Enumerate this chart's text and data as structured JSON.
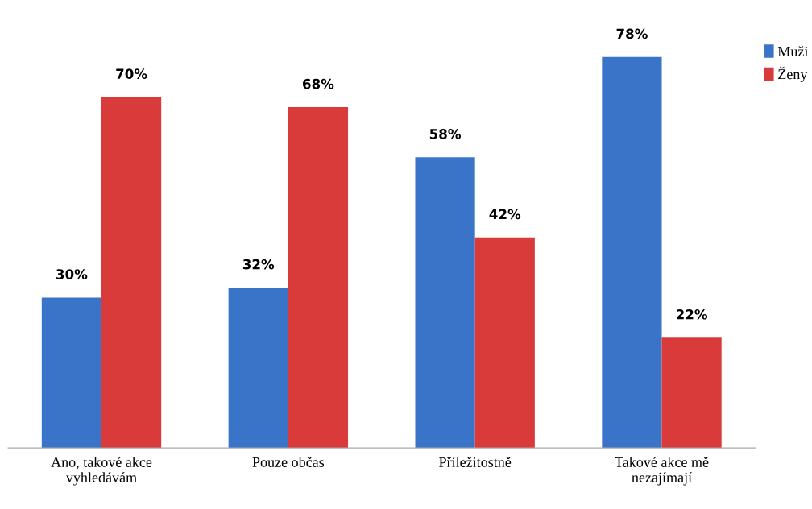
{
  "chart_data": {
    "type": "bar",
    "categories": [
      "Ano, takové akce\nvyhledávám",
      "Pouze občas",
      "Příležitostně",
      "Takové akce mě\nnezajímají"
    ],
    "series": [
      {
        "name": "Muži",
        "color": "#3a74c8",
        "values": [
          30,
          32,
          58,
          78
        ],
        "value_labels": [
          "30%",
          "32%",
          "58%",
          "78%"
        ]
      },
      {
        "name": "Ženy",
        "color": "#d93a3a",
        "values": [
          70,
          68,
          42,
          22
        ],
        "value_labels": [
          "70%",
          "68%",
          "42%",
          "22%"
        ]
      }
    ],
    "legend": "top right",
    "grid": false
  }
}
